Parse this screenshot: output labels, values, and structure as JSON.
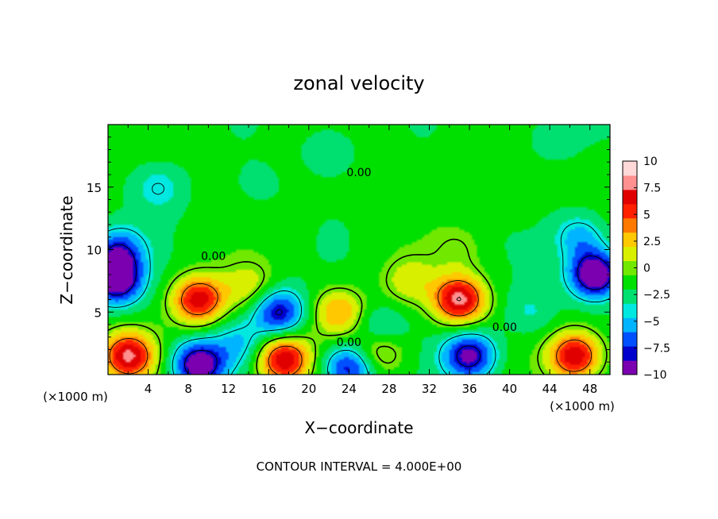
{
  "chart_data": {
    "type": "heatmap",
    "title": "zonal velocity",
    "xlabel": "X−coordinate",
    "ylabel": "Z−coordinate",
    "x_unit_left": "(×1000 m)",
    "x_unit_right": "(×1000 m)",
    "footer": "CONTOUR INTERVAL = 4.000E+00",
    "xlim": [
      0,
      50
    ],
    "ylim": [
      0,
      20
    ],
    "x_ticks": [
      4,
      8,
      12,
      16,
      20,
      24,
      28,
      32,
      36,
      40,
      44,
      48
    ],
    "y_ticks": [
      5,
      10,
      15
    ],
    "colorbar": {
      "ticks": [
        "10",
        "7.5",
        "5",
        "2.5",
        "0",
        "−2.5",
        "−5",
        "−7.5",
        "−10"
      ],
      "min": -10,
      "max": 10,
      "colors": [
        "#7b00b0",
        "#0000cc",
        "#0050ff",
        "#00b4ff",
        "#00e8e0",
        "#00e070",
        "#00e000",
        "#70e800",
        "#d8f000",
        "#ffc800",
        "#ff7800",
        "#ff2000",
        "#e00000",
        "#ff9090",
        "#ffd8d8"
      ]
    },
    "contour_labels": [
      {
        "text": "0.00",
        "x": 25,
        "y": 16.2
      },
      {
        "text": "0.00",
        "x": 10.5,
        "y": 9.5
      },
      {
        "text": "0.00",
        "x": 39.5,
        "y": 3.8
      },
      {
        "text": "0.00",
        "x": 24,
        "y": 2.6
      }
    ],
    "features": [
      {
        "x": 0.8,
        "z": 7.5,
        "value": -9
      },
      {
        "x": 2,
        "z": 1.5,
        "value": 9
      },
      {
        "x": 1,
        "z": 9.8,
        "value": -6
      },
      {
        "x": 5,
        "z": 15,
        "value": -2.5
      },
      {
        "x": 15,
        "z": 15,
        "value": -1
      },
      {
        "x": 35,
        "z": 10,
        "value": 1.5
      },
      {
        "x": 9,
        "z": 6,
        "value": 8.5
      },
      {
        "x": 17,
        "z": 5,
        "value": -7
      },
      {
        "x": 14,
        "z": 7,
        "value": 3
      },
      {
        "x": 23,
        "z": 5,
        "value": 5
      },
      {
        "x": 27,
        "z": 3.5,
        "value": -3.5
      },
      {
        "x": 35,
        "z": 6,
        "value": 9.5
      },
      {
        "x": 30,
        "z": 7.5,
        "value": 3
      },
      {
        "x": 36,
        "z": 1.5,
        "value": -8
      },
      {
        "x": 9,
        "z": 0.8,
        "value": -9
      },
      {
        "x": 17.5,
        "z": 1.2,
        "value": 9
      },
      {
        "x": 24,
        "z": 0.5,
        "value": -7
      },
      {
        "x": 27,
        "z": 2,
        "value": 4.5
      },
      {
        "x": 13,
        "z": 2.5,
        "value": -3
      },
      {
        "x": 46.5,
        "z": 1.5,
        "value": 9
      },
      {
        "x": 48.5,
        "z": 8,
        "value": -10
      },
      {
        "x": 47,
        "z": 11,
        "value": -4
      },
      {
        "x": 22,
        "z": 18,
        "value": -2
      },
      {
        "x": 44,
        "z": 19,
        "value": -1.5
      },
      {
        "x": 42,
        "z": 5,
        "value": -2
      },
      {
        "x": 40,
        "z": 14,
        "value": 0.5
      }
    ]
  }
}
